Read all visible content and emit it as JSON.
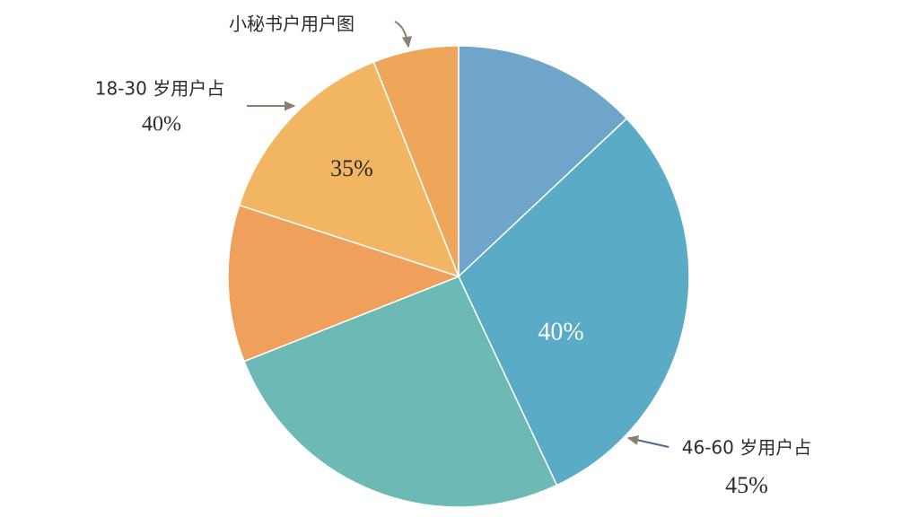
{
  "chart_data": {
    "type": "pie",
    "values": [
      13,
      30,
      26,
      11,
      14,
      6
    ],
    "colors": [
      "#6fa5cb",
      "#5aabc6",
      "#6cb9b6",
      "#eea05c",
      "#f2b663",
      "#eea65a"
    ],
    "annotations": [
      "小秘书户用户图",
      "18-30 岁用户占",
      "40%",
      "35%",
      "40%",
      "46-60 岁用户占",
      "45%"
    ]
  }
}
